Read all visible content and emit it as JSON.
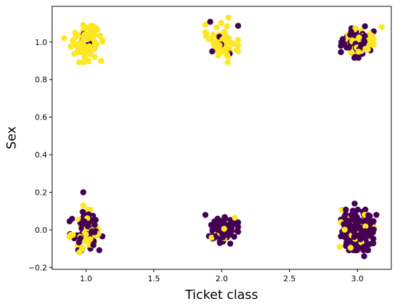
{
  "chart_data": {
    "type": "scatter",
    "title": "",
    "xlabel": "Ticket class",
    "ylabel": "Sex",
    "xlim": [
      0.75,
      3.25
    ],
    "ylim": [
      -0.21,
      1.19
    ],
    "x_ticks": [
      {
        "value": 1.0,
        "label": "1.0"
      },
      {
        "value": 1.5,
        "label": "1.5"
      },
      {
        "value": 2.0,
        "label": "2.0"
      },
      {
        "value": 2.5,
        "label": "2.5"
      },
      {
        "value": 3.0,
        "label": "3.0"
      }
    ],
    "y_ticks": [
      {
        "value": -0.2,
        "label": "−0.2"
      },
      {
        "value": 0.0,
        "label": "0.0"
      },
      {
        "value": 0.2,
        "label": "0.2"
      },
      {
        "value": 0.4,
        "label": "0.4"
      },
      {
        "value": 0.6,
        "label": "0.6"
      },
      {
        "value": 0.8,
        "label": "0.8"
      },
      {
        "value": 1.0,
        "label": "1.0"
      }
    ],
    "grid": false,
    "legend": "none",
    "colors": {
      "survived": "#fde725",
      "not_survived": "#440154"
    },
    "clusters": [
      {
        "x_center": 1,
        "y_center": 1,
        "yellow": 90,
        "purple": 3,
        "spread_x": 0.055,
        "spread_y": 0.045
      },
      {
        "x_center": 2,
        "y_center": 1,
        "yellow": 70,
        "purple": 6,
        "spread_x": 0.055,
        "spread_y": 0.045
      },
      {
        "x_center": 3,
        "y_center": 1,
        "yellow": 72,
        "purple": 72,
        "spread_x": 0.055,
        "spread_y": 0.035
      },
      {
        "x_center": 1,
        "y_center": 0,
        "yellow": 45,
        "purple": 77,
        "spread_x": 0.055,
        "spread_y": 0.045
      },
      {
        "x_center": 2,
        "y_center": 0,
        "yellow": 17,
        "purple": 91,
        "spread_x": 0.055,
        "spread_y": 0.035
      },
      {
        "x_center": 3,
        "y_center": 0,
        "yellow": 47,
        "purple": 300,
        "spread_x": 0.055,
        "spread_y": 0.045
      }
    ],
    "outliers": [
      {
        "x": 0.84,
        "y": 1.02,
        "color": "survived"
      },
      {
        "x": 3.18,
        "y": 1.08,
        "color": "survived"
      },
      {
        "x": 0.98,
        "y": 0.2,
        "color": "not_survived"
      },
      {
        "x": 0.98,
        "y": 0.13,
        "color": "survived"
      },
      {
        "x": 1.93,
        "y": 0.95,
        "color": "not_survived"
      },
      {
        "x": 2.05,
        "y": 1.13,
        "color": "survived"
      },
      {
        "x": 2.98,
        "y": 0.14,
        "color": "not_survived"
      },
      {
        "x": 3.05,
        "y": -0.14,
        "color": "not_survived"
      },
      {
        "x": 2.87,
        "y": -0.09,
        "color": "survived"
      },
      {
        "x": 0.95,
        "y": -0.12,
        "color": "survived"
      },
      {
        "x": 1.88,
        "y": 0.08,
        "color": "not_survived"
      },
      {
        "x": 3.14,
        "y": 0.08,
        "color": "not_survived"
      }
    ]
  }
}
